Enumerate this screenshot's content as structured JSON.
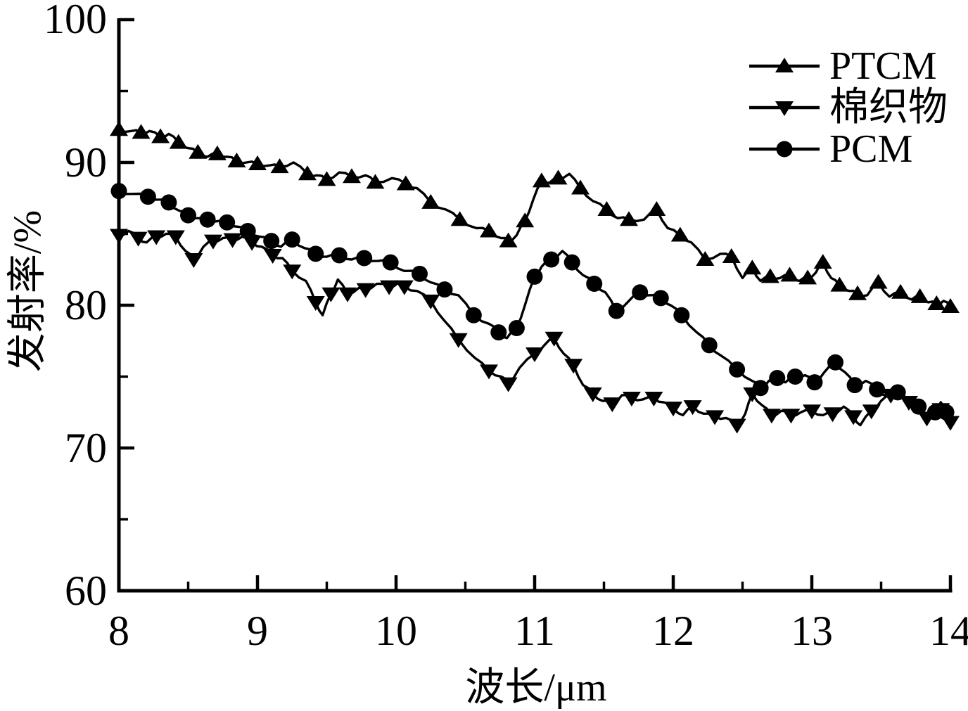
{
  "chart_data": {
    "type": "line",
    "title": "",
    "xlabel": "波长/μm",
    "ylabel": "发射率/%",
    "xlim": [
      8,
      14
    ],
    "ylim": [
      60,
      100
    ],
    "grid": false,
    "legend_position": "top-right",
    "axis_color": "#000000",
    "background_color": "#ffffff",
    "x_major_ticks": [
      8,
      9,
      10,
      11,
      12,
      13,
      14
    ],
    "x_minor_ticks": [
      8.5,
      9.5,
      10.5,
      11.5,
      12.5,
      13.5
    ],
    "y_major_ticks": [
      60,
      70,
      80,
      90,
      100
    ],
    "y_minor_ticks": [
      65,
      75,
      85,
      95
    ],
    "x_tick_labels": [
      "8",
      "9",
      "10",
      "11",
      "12",
      "13",
      "14"
    ],
    "y_tick_labels": [
      "100",
      "90",
      "80",
      "70",
      "60"
    ],
    "marker_every": 2,
    "series": [
      {
        "name": "PTCM",
        "marker": "triangle-up",
        "color": "#000000",
        "points": [
          [
            8.0,
            92.3
          ],
          [
            8.09,
            92.2
          ],
          [
            8.16,
            92.1
          ],
          [
            8.22,
            92.2
          ],
          [
            8.3,
            91.8
          ],
          [
            8.36,
            92.0
          ],
          [
            8.43,
            91.4
          ],
          [
            8.5,
            91.0
          ],
          [
            8.57,
            90.7
          ],
          [
            8.64,
            90.4
          ],
          [
            8.71,
            90.6
          ],
          [
            8.78,
            90.4
          ],
          [
            8.85,
            90.1
          ],
          [
            8.92,
            90.0
          ],
          [
            9.0,
            89.9
          ],
          [
            9.09,
            89.8
          ],
          [
            9.16,
            89.7
          ],
          [
            9.26,
            90.0
          ],
          [
            9.36,
            89.2
          ],
          [
            9.43,
            89.1
          ],
          [
            9.5,
            88.8
          ],
          [
            9.59,
            89.3
          ],
          [
            9.68,
            89.0
          ],
          [
            9.78,
            89.1
          ],
          [
            9.85,
            88.6
          ],
          [
            9.97,
            88.9
          ],
          [
            10.07,
            88.5
          ],
          [
            10.15,
            88.2
          ],
          [
            10.25,
            87.2
          ],
          [
            10.36,
            86.7
          ],
          [
            10.46,
            86.0
          ],
          [
            10.58,
            85.4
          ],
          [
            10.67,
            85.2
          ],
          [
            10.76,
            84.7
          ],
          [
            10.81,
            84.5
          ],
          [
            10.87,
            84.9
          ],
          [
            10.93,
            85.9
          ],
          [
            10.99,
            87.4
          ],
          [
            11.05,
            88.7
          ],
          [
            11.11,
            88.6
          ],
          [
            11.17,
            88.9
          ],
          [
            11.25,
            89.2
          ],
          [
            11.33,
            88.2
          ],
          [
            11.42,
            87.3
          ],
          [
            11.52,
            86.7
          ],
          [
            11.6,
            86.1
          ],
          [
            11.68,
            86.0
          ],
          [
            11.79,
            86.0
          ],
          [
            11.88,
            86.7
          ],
          [
            11.96,
            85.4
          ],
          [
            12.05,
            84.9
          ],
          [
            12.13,
            84.4
          ],
          [
            12.23,
            83.2
          ],
          [
            12.34,
            83.6
          ],
          [
            12.42,
            83.4
          ],
          [
            12.5,
            81.9
          ],
          [
            12.57,
            82.6
          ],
          [
            12.63,
            81.7
          ],
          [
            12.7,
            82.0
          ],
          [
            12.77,
            81.9
          ],
          [
            12.84,
            82.1
          ],
          [
            12.91,
            81.7
          ],
          [
            12.97,
            81.9
          ],
          [
            13.03,
            82.3
          ],
          [
            13.08,
            83.0
          ],
          [
            13.14,
            81.9
          ],
          [
            13.2,
            81.4
          ],
          [
            13.27,
            81.0
          ],
          [
            13.33,
            80.8
          ],
          [
            13.4,
            80.7
          ],
          [
            13.48,
            81.6
          ],
          [
            13.56,
            80.6
          ],
          [
            13.64,
            80.9
          ],
          [
            13.72,
            80.4
          ],
          [
            13.78,
            80.6
          ],
          [
            13.84,
            80.2
          ],
          [
            13.9,
            80.1
          ],
          [
            13.95,
            80.3
          ],
          [
            14.0,
            79.9
          ]
        ]
      },
      {
        "name": "棉织物",
        "marker": "triangle-down",
        "color": "#000000",
        "points": [
          [
            8.0,
            84.9
          ],
          [
            8.07,
            85.2
          ],
          [
            8.14,
            84.7
          ],
          [
            8.2,
            84.4
          ],
          [
            8.27,
            84.8
          ],
          [
            8.34,
            85.0
          ],
          [
            8.41,
            84.8
          ],
          [
            8.48,
            83.8
          ],
          [
            8.54,
            83.2
          ],
          [
            8.61,
            84.1
          ],
          [
            8.68,
            84.5
          ],
          [
            8.75,
            84.7
          ],
          [
            8.82,
            84.6
          ],
          [
            8.89,
            84.8
          ],
          [
            8.96,
            84.4
          ],
          [
            9.03,
            84.1
          ],
          [
            9.11,
            83.5
          ],
          [
            9.18,
            83.3
          ],
          [
            9.25,
            82.4
          ],
          [
            9.35,
            81.7
          ],
          [
            9.42,
            80.2
          ],
          [
            9.47,
            79.3
          ],
          [
            9.53,
            80.8
          ],
          [
            9.58,
            81.8
          ],
          [
            9.65,
            80.8
          ],
          [
            9.73,
            81.2
          ],
          [
            9.78,
            81.1
          ],
          [
            9.86,
            81.5
          ],
          [
            9.95,
            81.3
          ],
          [
            10.02,
            81.6
          ],
          [
            10.06,
            81.3
          ],
          [
            10.15,
            81.0
          ],
          [
            10.25,
            80.3
          ],
          [
            10.35,
            78.9
          ],
          [
            10.45,
            77.6
          ],
          [
            10.57,
            76.3
          ],
          [
            10.67,
            75.4
          ],
          [
            10.76,
            75.0
          ],
          [
            10.81,
            74.5
          ],
          [
            10.89,
            75.6
          ],
          [
            11.0,
            76.6
          ],
          [
            11.07,
            77.2
          ],
          [
            11.14,
            77.7
          ],
          [
            11.21,
            76.6
          ],
          [
            11.28,
            75.8
          ],
          [
            11.35,
            74.4
          ],
          [
            11.42,
            73.8
          ],
          [
            11.49,
            73.3
          ],
          [
            11.56,
            73.1
          ],
          [
            11.63,
            73.7
          ],
          [
            11.7,
            73.5
          ],
          [
            11.78,
            73.4
          ],
          [
            11.86,
            73.5
          ],
          [
            11.93,
            73.2
          ],
          [
            12.0,
            72.8
          ],
          [
            12.07,
            72.3
          ],
          [
            12.14,
            72.9
          ],
          [
            12.22,
            72.4
          ],
          [
            12.3,
            72.2
          ],
          [
            12.38,
            72.1
          ],
          [
            12.46,
            71.6
          ],
          [
            12.52,
            72.4
          ],
          [
            12.57,
            73.8
          ],
          [
            12.64,
            73.0
          ],
          [
            12.71,
            72.3
          ],
          [
            12.78,
            72.6
          ],
          [
            12.85,
            72.3
          ],
          [
            12.92,
            72.5
          ],
          [
            13.0,
            72.6
          ],
          [
            13.08,
            72.3
          ],
          [
            13.15,
            72.4
          ],
          [
            13.23,
            72.9
          ],
          [
            13.3,
            72.2
          ],
          [
            13.35,
            71.6
          ],
          [
            13.43,
            72.6
          ],
          [
            13.5,
            73.3
          ],
          [
            13.57,
            73.7
          ],
          [
            13.63,
            73.9
          ],
          [
            13.7,
            73.2
          ],
          [
            13.77,
            72.8
          ],
          [
            13.83,
            72.1
          ],
          [
            13.88,
            72.3
          ],
          [
            13.93,
            72.7
          ],
          [
            13.97,
            72.0
          ],
          [
            14.0,
            71.8
          ]
        ]
      },
      {
        "name": "PCM",
        "marker": "circle",
        "color": "#000000",
        "points": [
          [
            8.0,
            88.0
          ],
          [
            8.1,
            87.8
          ],
          [
            8.21,
            87.6
          ],
          [
            8.3,
            87.4
          ],
          [
            8.36,
            87.2
          ],
          [
            8.44,
            86.6
          ],
          [
            8.5,
            86.3
          ],
          [
            8.58,
            86.1
          ],
          [
            8.64,
            86.0
          ],
          [
            8.72,
            85.9
          ],
          [
            8.78,
            85.8
          ],
          [
            8.86,
            85.5
          ],
          [
            8.93,
            85.2
          ],
          [
            9.02,
            84.8
          ],
          [
            9.1,
            84.5
          ],
          [
            9.17,
            84.1
          ],
          [
            9.25,
            84.6
          ],
          [
            9.34,
            84.0
          ],
          [
            9.42,
            83.6
          ],
          [
            9.5,
            83.4
          ],
          [
            9.59,
            83.5
          ],
          [
            9.68,
            83.2
          ],
          [
            9.77,
            83.3
          ],
          [
            9.87,
            83.1
          ],
          [
            9.96,
            83.0
          ],
          [
            10.06,
            82.4
          ],
          [
            10.17,
            82.2
          ],
          [
            10.25,
            81.6
          ],
          [
            10.35,
            81.1
          ],
          [
            10.45,
            80.7
          ],
          [
            10.56,
            79.3
          ],
          [
            10.67,
            78.7
          ],
          [
            10.74,
            78.1
          ],
          [
            10.8,
            77.7
          ],
          [
            10.87,
            78.4
          ],
          [
            10.93,
            80.0
          ],
          [
            11.0,
            82.0
          ],
          [
            11.05,
            82.7
          ],
          [
            11.12,
            83.2
          ],
          [
            11.2,
            83.8
          ],
          [
            11.27,
            83.0
          ],
          [
            11.35,
            82.1
          ],
          [
            11.43,
            81.5
          ],
          [
            11.51,
            80.9
          ],
          [
            11.59,
            79.6
          ],
          [
            11.67,
            80.2
          ],
          [
            11.76,
            80.9
          ],
          [
            11.84,
            80.7
          ],
          [
            11.91,
            80.5
          ],
          [
            11.98,
            80.0
          ],
          [
            12.06,
            79.3
          ],
          [
            12.17,
            78.1
          ],
          [
            12.26,
            77.2
          ],
          [
            12.34,
            76.5
          ],
          [
            12.46,
            75.5
          ],
          [
            12.57,
            74.7
          ],
          [
            12.63,
            74.2
          ],
          [
            12.69,
            74.7
          ],
          [
            12.75,
            74.9
          ],
          [
            12.81,
            74.6
          ],
          [
            12.88,
            75.0
          ],
          [
            12.95,
            75.1
          ],
          [
            13.02,
            74.6
          ],
          [
            13.09,
            75.3
          ],
          [
            13.17,
            76.0
          ],
          [
            13.24,
            75.3
          ],
          [
            13.31,
            74.4
          ],
          [
            13.39,
            74.7
          ],
          [
            13.47,
            74.1
          ],
          [
            13.55,
            73.6
          ],
          [
            13.62,
            73.9
          ],
          [
            13.7,
            73.4
          ],
          [
            13.77,
            72.9
          ],
          [
            13.83,
            72.3
          ],
          [
            13.89,
            72.5
          ],
          [
            13.93,
            73.2
          ],
          [
            13.97,
            72.5
          ],
          [
            14.0,
            72.1
          ]
        ]
      }
    ],
    "legend_items": [
      "PTCM",
      "棉织物",
      "PCM"
    ]
  }
}
